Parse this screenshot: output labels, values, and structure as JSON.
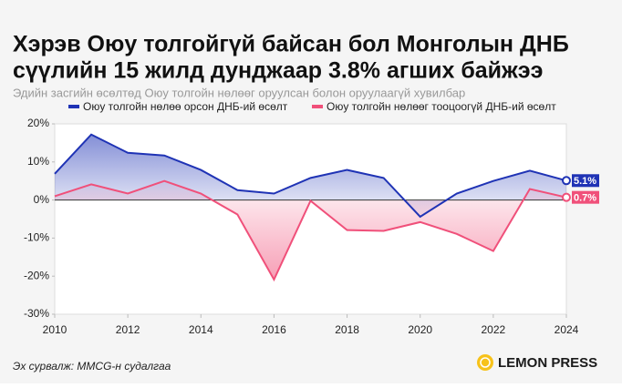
{
  "chart_data": {
    "type": "line",
    "title": [
      "Хэрэв Оюу толгойгүй байсан бол Монголын ДНБ",
      "сүүлийн 15 жилд дунджаар 3.8% агших байжээ"
    ],
    "subtitle": "Эдийн засгийн өсөлтөд Оюу толгойн нөлөөг оруулсан болон оруулаагүй хувилбар",
    "source": "Эх сурвалж: MMCG-н судалгаа",
    "brand": "LEMON PRESS",
    "x": [
      2010,
      2011,
      2012,
      2013,
      2014,
      2015,
      2016,
      2017,
      2018,
      2019,
      2020,
      2021,
      2022,
      2023,
      2024
    ],
    "series": [
      {
        "name": "Оюу толгойн нөлөө орсон ДНБ-ий өсөлт",
        "color": "#1f33b5",
        "values": [
          6.9,
          17.2,
          12.4,
          11.7,
          7.9,
          2.6,
          1.7,
          5.8,
          7.9,
          5.8,
          -4.4,
          1.7,
          5.0,
          7.7,
          5.1
        ],
        "value_labels": [
          null,
          null,
          null,
          null,
          null,
          null,
          null,
          null,
          null,
          null,
          null,
          null,
          null,
          null,
          "5.1%"
        ]
      },
      {
        "name": "Оюу толгойн нөлөөг тооцоогүй ДНБ-ий өсөлт",
        "color": "#f0507a",
        "values": [
          1.0,
          4.1,
          1.7,
          5.0,
          1.7,
          -3.8,
          -20.9,
          -0.2,
          -7.9,
          -8.1,
          -5.8,
          -8.9,
          -13.4,
          2.9,
          0.7
        ],
        "value_labels": [
          null,
          null,
          null,
          null,
          null,
          null,
          null,
          null,
          null,
          null,
          null,
          null,
          null,
          null,
          "0.7%"
        ]
      }
    ],
    "xlim": [
      2010,
      2024
    ],
    "xticks": [
      2010,
      2012,
      2014,
      2016,
      2018,
      2020,
      2022,
      2024
    ],
    "ylim": [
      -30,
      20
    ],
    "yticks": [
      {
        "value": -30,
        "label": "-30%"
      },
      {
        "value": -20,
        "label": "-20%"
      },
      {
        "value": -10,
        "label": "-10%"
      },
      {
        "value": 0,
        "label": "0%"
      },
      {
        "value": 10,
        "label": "10%"
      },
      {
        "value": 20,
        "label": "20%"
      }
    ],
    "grid": false
  }
}
